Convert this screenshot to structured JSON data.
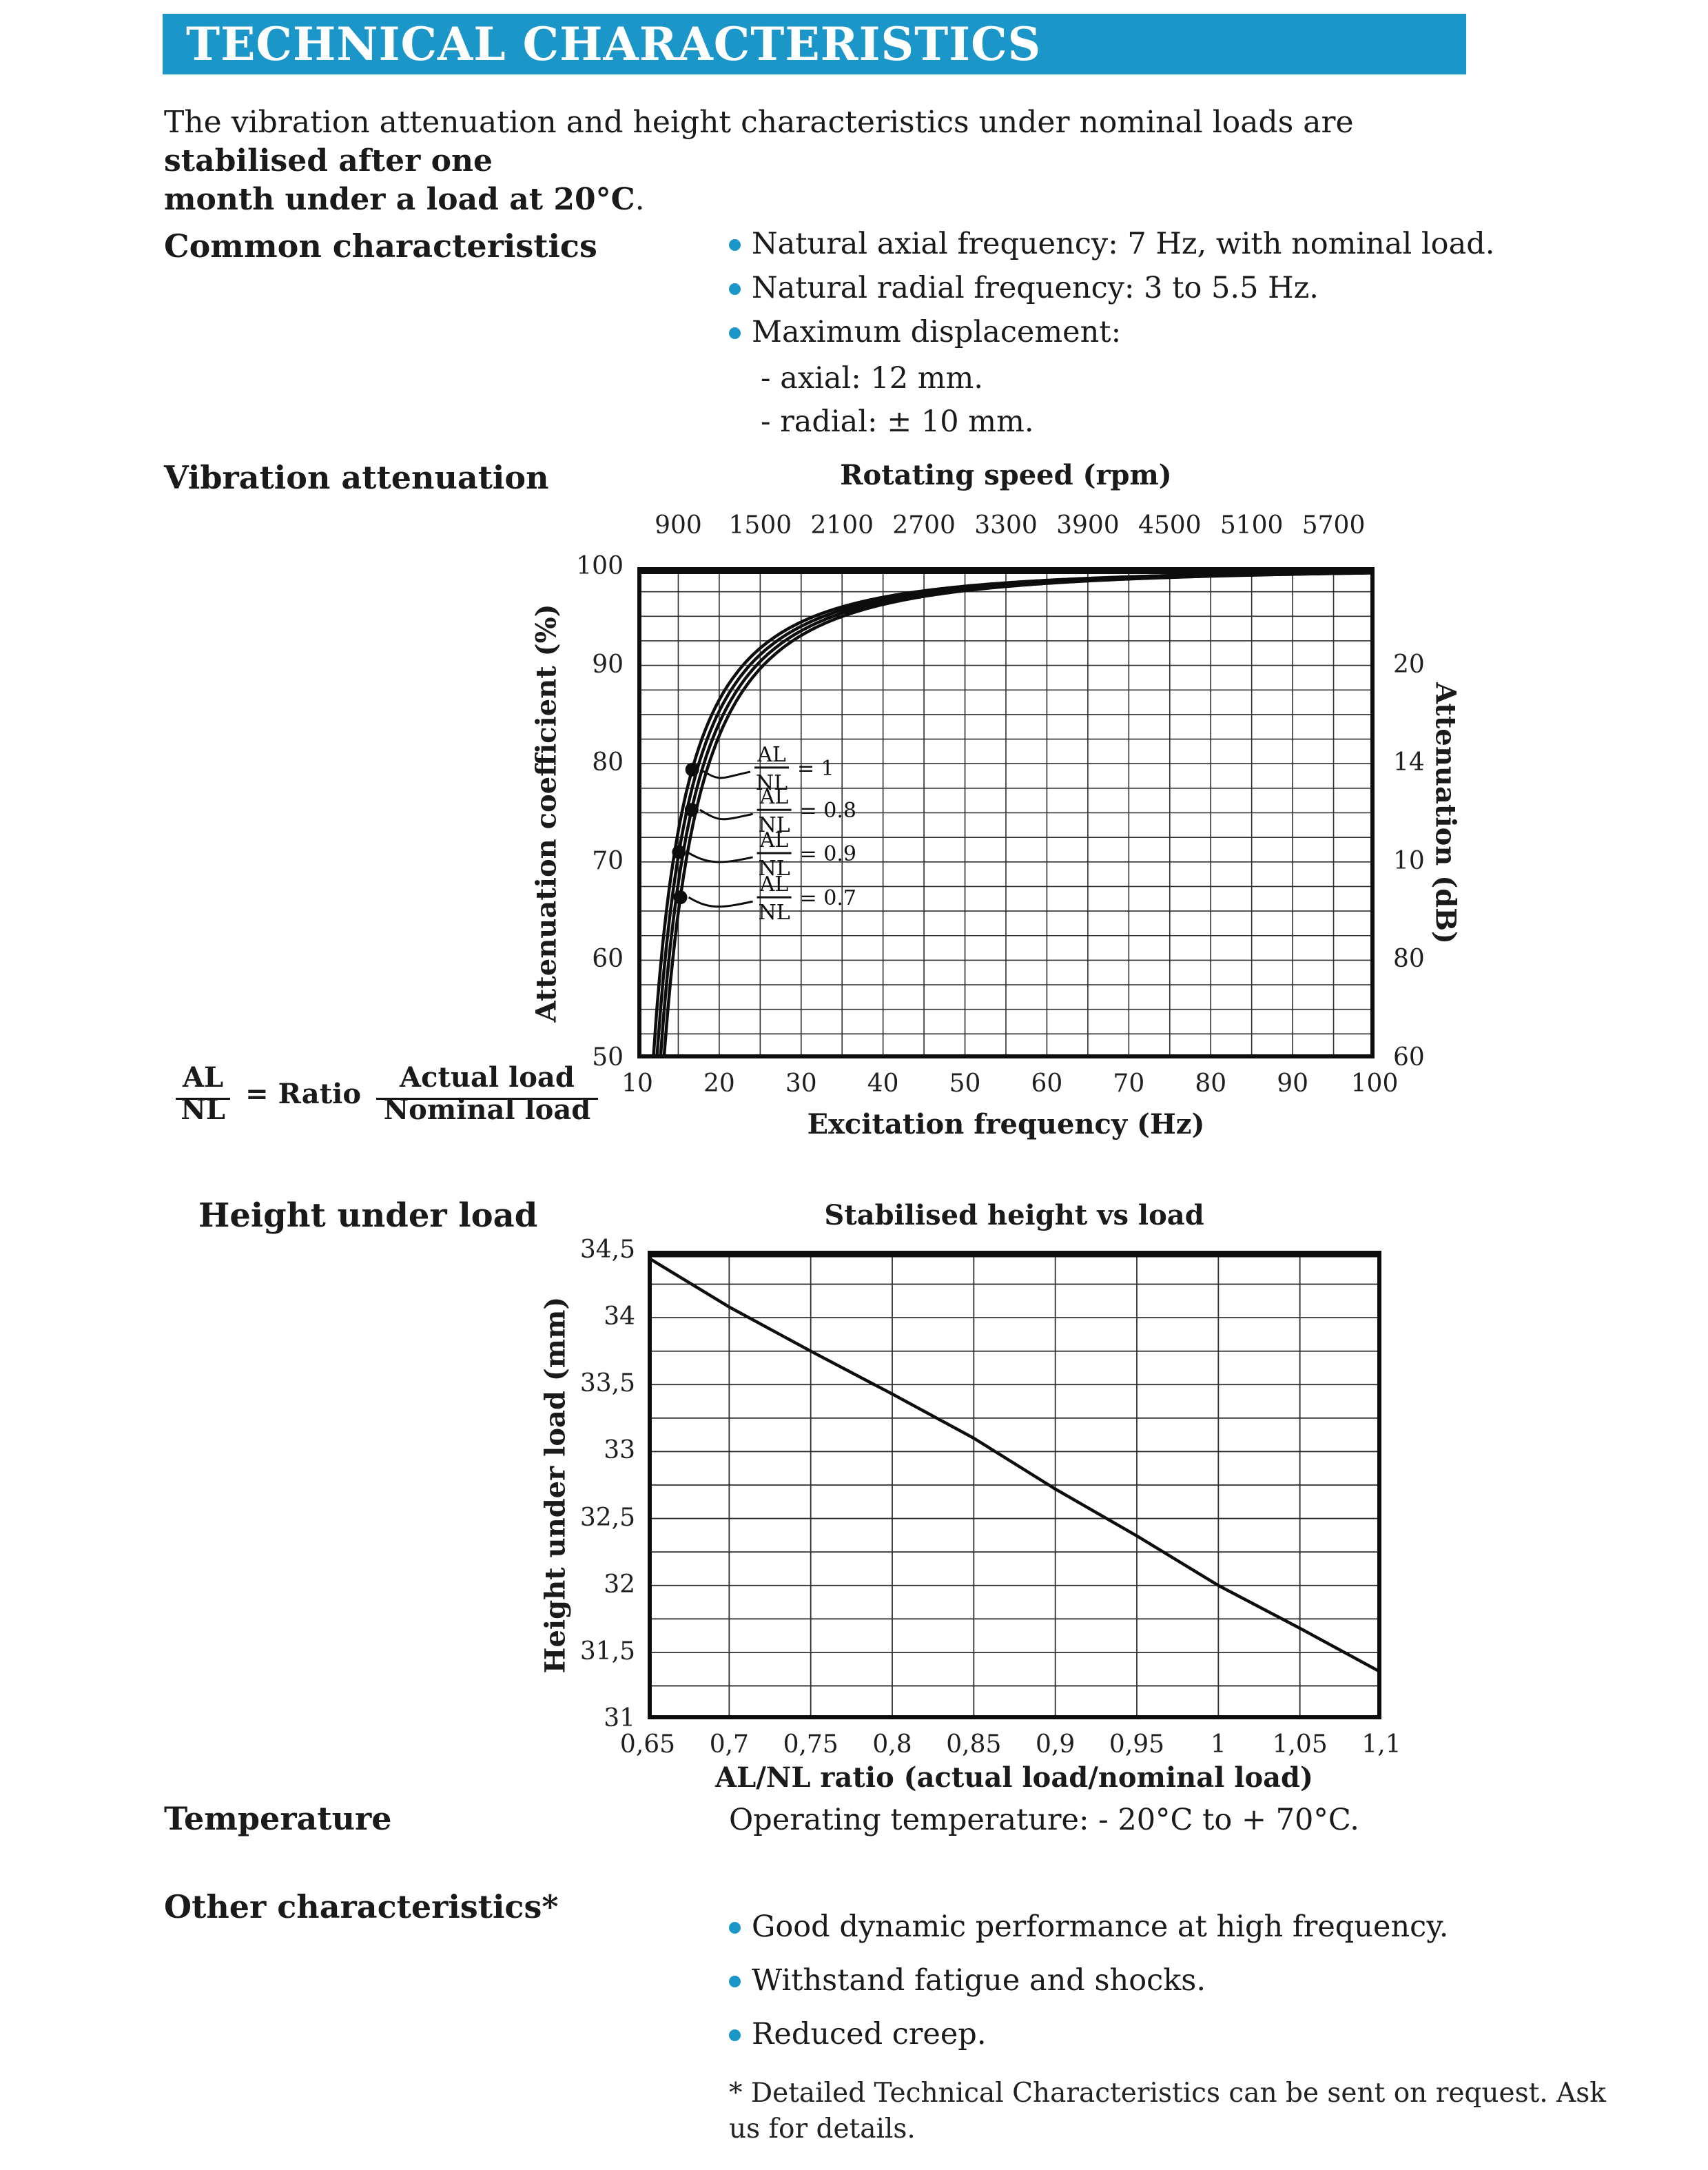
{
  "page": {
    "background": "#ffffff",
    "accent_blue": "#1b96c8",
    "text_color": "#1a1a1a"
  },
  "header": {
    "title": "TECHNICAL CHARACTERISTICS"
  },
  "intro": {
    "line1_pre": "The vibration attenuation and height characteristics under nominal loads are ",
    "line1_bold": "stabilised after one",
    "line2_bold": "month under a load at 20°C",
    "line2_post": "."
  },
  "sections": {
    "common": {
      "heading": "Common characteristics",
      "bullets": [
        "Natural axial frequency: 7 Hz, with nominal load.",
        "Natural radial frequency: 3 to 5.5 Hz.",
        "Maximum displacement:"
      ],
      "sub_items": [
        "- axial: 12 mm.",
        "- radial: ± 10 mm."
      ]
    },
    "vibration": {
      "heading": "Vibration attenuation"
    },
    "height": {
      "heading": "Height under load"
    },
    "temperature": {
      "heading": "Temperature",
      "text": "Operating temperature: - 20°C to + 70°C."
    },
    "other": {
      "heading": "Other characteristics*",
      "bullets": [
        "Good dynamic performance at high frequency.",
        "Withstand fatigue and shocks.",
        "Reduced creep."
      ]
    },
    "footnote_line1": "* Detailed Technical Characteristics can be sent on request. Ask",
    "footnote_line2": "us for details."
  },
  "formula": {
    "num": "AL",
    "den": "NL",
    "equals": "= Ratio",
    "num2": "Actual load",
    "den2": "Nominal load"
  },
  "chart_data": [
    {
      "type": "line",
      "title": "Rotating speed (rpm)",
      "xlabel": "Excitation frequency (Hz)",
      "ylabel_left": "Attenuation coefficient (%)",
      "ylabel_right": "Attenuation (dB)",
      "xlim": [
        10,
        100
      ],
      "ylim": [
        50,
        100
      ],
      "grid": "on",
      "grid_x_step": 5,
      "grid_y_step": 2.5,
      "x_ticks": [
        10,
        20,
        30,
        40,
        50,
        60,
        70,
        80,
        90,
        100
      ],
      "y_ticks_left": [
        100,
        90,
        80,
        70,
        60,
        50
      ],
      "y_ticks_right": [
        {
          "label": "20",
          "at": 90
        },
        {
          "label": "14",
          "at": 80
        },
        {
          "label": "10",
          "at": 70
        },
        {
          "label": "80",
          "at": 60
        },
        {
          "label": "60",
          "at": 50
        }
      ],
      "top_ticks": [
        {
          "label": "900",
          "at_hz": 15
        },
        {
          "label": "1500",
          "at_hz": 25
        },
        {
          "label": "2100",
          "at_hz": 35
        },
        {
          "label": "2700",
          "at_hz": 45
        },
        {
          "label": "3300",
          "at_hz": 55
        },
        {
          "label": "3900",
          "at_hz": 65
        },
        {
          "label": "4500",
          "at_hz": 75
        },
        {
          "label": "5100",
          "at_hz": 85
        },
        {
          "label": "5700",
          "at_hz": 95
        }
      ],
      "series": [
        {
          "name": "AL/NL = 1",
          "ratio": "1",
          "natural_freq_hz": 6.9,
          "samples": {
            "f": [
              14,
              16,
              18,
              20,
              25,
              30,
              40,
              60,
              100
            ],
            "att": [
              67.9,
              77.1,
              82.8,
              86.5,
              91.8,
              94.4,
              96.8,
              98.6,
              99.5
            ]
          },
          "marker": {
            "f": 16.7,
            "att": 79.4
          },
          "label": {
            "num": "AL",
            "den": "NL",
            "value": "= 1",
            "x": 24.3,
            "y": 79.6
          }
        },
        {
          "name": "AL/NL = 0.9",
          "ratio": "0.9",
          "natural_freq_hz": 7.15,
          "samples": {
            "f": [
              14,
              16,
              18,
              20,
              25,
              30,
              40,
              60,
              100
            ],
            "att": [
              64.7,
              75.0,
              81.3,
              85.3,
              91.1,
              94.0,
              96.7,
              98.6,
              99.5
            ]
          },
          "marker": {
            "f": 15.08,
            "att": 71.0
          },
          "label": {
            "num": "AL",
            "den": "NL",
            "value": "= 0.9",
            "x": 24.6,
            "y": 70.9
          }
        },
        {
          "name": "AL/NL = 0.8",
          "ratio": "0.8",
          "natural_freq_hz": 7.4,
          "samples": {
            "f": [
              14,
              16,
              18,
              20,
              25,
              30,
              40,
              60,
              100
            ],
            "att": [
              61.2,
              72.8,
              79.7,
              84.1,
              90.4,
              93.5,
              96.5,
              98.5,
              99.4
            ]
          },
          "marker": {
            "f": 16.63,
            "att": 75.3
          },
          "label": {
            "num": "AL",
            "den": "NL",
            "value": "= 0.8",
            "x": 24.6,
            "y": 75.3
          }
        },
        {
          "name": "AL/NL = 0.7",
          "ratio": "0.7",
          "natural_freq_hz": 7.65,
          "samples": {
            "f": [
              14,
              16,
              18,
              20,
              25,
              30,
              40,
              60,
              100
            ],
            "att": [
              57.4,
              70.4,
              78.0,
              82.9,
              89.7,
              93.0,
              96.2,
              98.3,
              99.4
            ]
          },
          "marker": {
            "f": 15.26,
            "att": 66.4
          },
          "label": {
            "num": "AL",
            "den": "NL",
            "value": "= 0.7",
            "x": 24.6,
            "y": 66.4
          }
        }
      ]
    },
    {
      "type": "line",
      "title": "Stabilised height vs load",
      "xlabel": "AL/NL ratio (actual load/nominal load)",
      "ylabel": "Height under load (mm)",
      "xlim": [
        0.65,
        1.1
      ],
      "ylim": [
        31,
        34.5
      ],
      "grid": "on",
      "grid_x_step": 0.05,
      "grid_y_step": 0.25,
      "x_ticks": [
        {
          "label": "0,65",
          "at": 0.65
        },
        {
          "label": "0,7",
          "at": 0.7
        },
        {
          "label": "0,75",
          "at": 0.75
        },
        {
          "label": "0,8",
          "at": 0.8
        },
        {
          "label": "0,85",
          "at": 0.85
        },
        {
          "label": "0,9",
          "at": 0.9
        },
        {
          "label": "0,95",
          "at": 0.95
        },
        {
          "label": "1",
          "at": 1.0
        },
        {
          "label": "1,05",
          "at": 1.05
        },
        {
          "label": "1,1",
          "at": 1.1
        }
      ],
      "y_ticks": [
        {
          "label": "34,5",
          "at": 34.5
        },
        {
          "label": "34",
          "at": 34.0
        },
        {
          "label": "33,5",
          "at": 33.5
        },
        {
          "label": "33",
          "at": 33.0
        },
        {
          "label": "32,5",
          "at": 32.5
        },
        {
          "label": "32",
          "at": 32.0
        },
        {
          "label": "31,5",
          "at": 31.5
        },
        {
          "label": "31",
          "at": 31.0
        }
      ],
      "series": [
        {
          "name": "stabilised height",
          "x": [
            0.65,
            0.7,
            0.75,
            0.8,
            0.85,
            0.9,
            0.95,
            1.0,
            1.05,
            1.1
          ],
          "y": [
            34.45,
            34.08,
            33.75,
            33.43,
            33.1,
            32.72,
            32.37,
            32.0,
            31.68,
            31.35
          ]
        }
      ]
    }
  ]
}
